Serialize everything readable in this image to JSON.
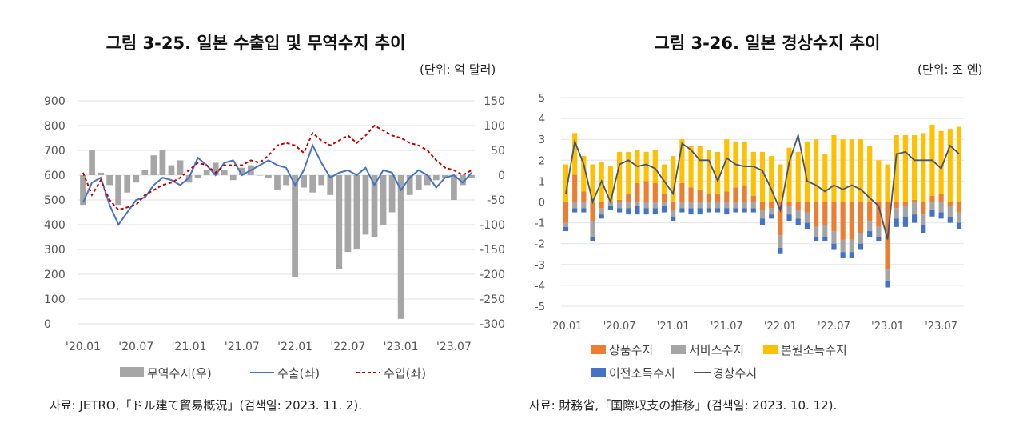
{
  "left": {
    "title": "그림 3-25. 일본 수출입 및 무역수지 추이",
    "unit": "(단위: 억 달러)",
    "source": "자료: JETRO,「ドル建て貿易概況」(검색일: 2023. 11. 2).",
    "chart_data": {
      "type": "bar+line",
      "y_left": {
        "min": 0,
        "max": 900,
        "ticks": [
          "900",
          "800",
          "700",
          "600",
          "500",
          "400",
          "300",
          "200",
          "100",
          "0"
        ]
      },
      "y_right": {
        "min": -300,
        "max": 150,
        "ticks": [
          "150",
          "100",
          "50",
          "0",
          "-50",
          "-100",
          "-150",
          "-200",
          "-250",
          "-300"
        ]
      },
      "x_ticks": [
        "'20.01",
        "'20.07",
        "'21.01",
        "'21.07",
        "'22.01",
        "'22.07",
        "'23.01",
        "'23.07"
      ],
      "x_tick_index": [
        0,
        6,
        12,
        18,
        24,
        30,
        36,
        42
      ],
      "grid": true,
      "legend_placement": "bottom",
      "series": [
        {
          "name": "무역수지(우)",
          "kind": "bar",
          "axis": "right",
          "color": "#a6a6a6",
          "values": [
            -60,
            50,
            5,
            -20,
            -60,
            -35,
            -15,
            10,
            40,
            50,
            20,
            30,
            -15,
            -5,
            10,
            25,
            10,
            -10,
            15,
            20,
            0,
            -5,
            -30,
            -20,
            -205,
            -25,
            -35,
            -20,
            -40,
            -190,
            -155,
            -150,
            -120,
            -125,
            -100,
            -75,
            -290,
            -40,
            -30,
            -20,
            -10,
            -5,
            -50,
            -20,
            -5
          ],
          "values_note": ""
        },
        {
          "name": "수출(좌)",
          "kind": "line",
          "axis": "left",
          "color": "#4472c4",
          "dash": "",
          "values": [
            490,
            570,
            590,
            480,
            400,
            450,
            500,
            510,
            560,
            590,
            580,
            560,
            590,
            670,
            640,
            600,
            650,
            660,
            600,
            620,
            640,
            660,
            640,
            630,
            560,
            620,
            720,
            650,
            590,
            610,
            620,
            600,
            630,
            560,
            620,
            610,
            540,
            590,
            620,
            600,
            550,
            590,
            600,
            570,
            610
          ]
        },
        {
          "name": "수입(좌)",
          "kind": "line",
          "axis": "left",
          "color": "#c00000",
          "dash": "4,3",
          "values": [
            610,
            520,
            580,
            500,
            460,
            470,
            480,
            520,
            540,
            560,
            570,
            590,
            620,
            650,
            640,
            610,
            640,
            640,
            640,
            660,
            650,
            680,
            720,
            730,
            720,
            690,
            770,
            740,
            720,
            740,
            760,
            730,
            760,
            800,
            780,
            760,
            750,
            730,
            720,
            700,
            660,
            630,
            620,
            600,
            620
          ]
        }
      ]
    }
  },
  "right": {
    "title": "그림 3-26. 일본 경상수지 추이",
    "unit": "(단위: 조 엔)",
    "source": "자료: 財務省,「国際収支の推移」(검색일: 2023. 10. 12).",
    "chart_data": {
      "type": "stacked-bar+line",
      "y": {
        "min": -5,
        "max": 5,
        "ticks": [
          "5",
          "4",
          "3",
          "2",
          "1",
          "0",
          "-1",
          "-2",
          "-3",
          "-4",
          "-5"
        ]
      },
      "x_ticks": [
        "'20.01",
        "'20.07",
        "'21.01",
        "'21.07",
        "'22.01",
        "'22.07",
        "'23.01",
        "'23.07"
      ],
      "x_tick_index": [
        0,
        6,
        12,
        18,
        24,
        30,
        36,
        42
      ],
      "grid": true,
      "legend_placement": "bottom",
      "series": [
        {
          "name": "상품수지",
          "kind": "bar",
          "color": "#ed7d31",
          "values": [
            -1.0,
            1.3,
            0.5,
            -0.9,
            -0.3,
            0.0,
            0.1,
            0.4,
            0.9,
            1.0,
            0.9,
            0.4,
            -0.4,
            0.9,
            0.7,
            0.6,
            0.4,
            0.4,
            0.5,
            0.7,
            0.8,
            0.3,
            -0.4,
            -0.3,
            -1.6,
            -0.2,
            -0.4,
            -0.5,
            -1.2,
            -1.1,
            -1.4,
            -1.8,
            -1.8,
            -1.5,
            -0.9,
            -1.2,
            -3.2,
            -0.3,
            -0.2,
            0.1,
            -0.6,
            0.3,
            0.4,
            -0.2,
            -0.5
          ]
        },
        {
          "name": "서비스수지",
          "kind": "bar",
          "color": "#a5a5a5",
          "values": [
            -0.2,
            -0.3,
            -0.3,
            -0.8,
            -0.3,
            -0.2,
            -0.3,
            -0.3,
            -0.2,
            -0.3,
            -0.3,
            -0.2,
            -0.3,
            -0.3,
            -0.3,
            -0.3,
            -0.3,
            -0.3,
            -0.3,
            -0.3,
            -0.3,
            -0.3,
            -0.4,
            -0.3,
            -0.6,
            -0.4,
            -0.4,
            -0.5,
            -0.5,
            -0.6,
            -0.6,
            -0.6,
            -0.6,
            -0.5,
            -0.5,
            -0.5,
            -0.6,
            -0.5,
            -0.5,
            -0.6,
            -0.5,
            -0.4,
            -0.5,
            -0.5,
            -0.5
          ]
        },
        {
          "name": "본원소득수지",
          "kind": "bar",
          "color": "#ffc000",
          "values": [
            1.8,
            2.0,
            1.7,
            1.8,
            1.9,
            1.7,
            2.3,
            2.0,
            1.6,
            1.4,
            1.6,
            1.4,
            2.2,
            2.1,
            2.0,
            2.1,
            2.1,
            2.0,
            2.5,
            2.2,
            2.1,
            2.1,
            2.4,
            2.2,
            1.8,
            2.6,
            2.4,
            2.9,
            3.0,
            2.3,
            3.2,
            3.0,
            3.0,
            3.0,
            2.7,
            2.0,
            1.8,
            3.2,
            3.2,
            3.1,
            3.3,
            3.4,
            3.0,
            3.5,
            3.6
          ]
        },
        {
          "name": "이전소득수지",
          "kind": "bar",
          "color": "#4472c4",
          "values": [
            -0.2,
            -0.2,
            -0.2,
            -0.2,
            -0.2,
            -0.2,
            -0.2,
            -0.3,
            -0.4,
            -0.3,
            -0.3,
            -0.3,
            -0.2,
            -0.2,
            -0.3,
            -0.3,
            -0.2,
            -0.2,
            -0.3,
            -0.2,
            -0.2,
            -0.2,
            -0.3,
            -0.2,
            -0.3,
            -0.3,
            -0.3,
            -0.3,
            -0.2,
            -0.2,
            -0.3,
            -0.3,
            -0.3,
            -0.3,
            -0.3,
            -0.2,
            -0.3,
            -0.4,
            -0.5,
            -0.4,
            -0.4,
            -0.3,
            -0.3,
            -0.3,
            -0.3
          ]
        },
        {
          "name": "경상수지",
          "kind": "line",
          "color": "#44546a",
          "values": [
            0.4,
            2.9,
            1.8,
            0.0,
            1.0,
            0.0,
            1.8,
            2.0,
            1.7,
            1.8,
            1.6,
            1.0,
            0.4,
            2.8,
            2.5,
            2.0,
            2.0,
            1.0,
            2.1,
            1.8,
            1.7,
            1.7,
            1.5,
            0.6,
            -0.4,
            1.9,
            3.2,
            1.0,
            0.8,
            0.5,
            0.8,
            0.6,
            0.8,
            0.6,
            0.2,
            -0.2,
            -1.8,
            2.3,
            2.4,
            2.0,
            2.0,
            2.0,
            1.6,
            2.7,
            2.3
          ]
        }
      ]
    }
  }
}
